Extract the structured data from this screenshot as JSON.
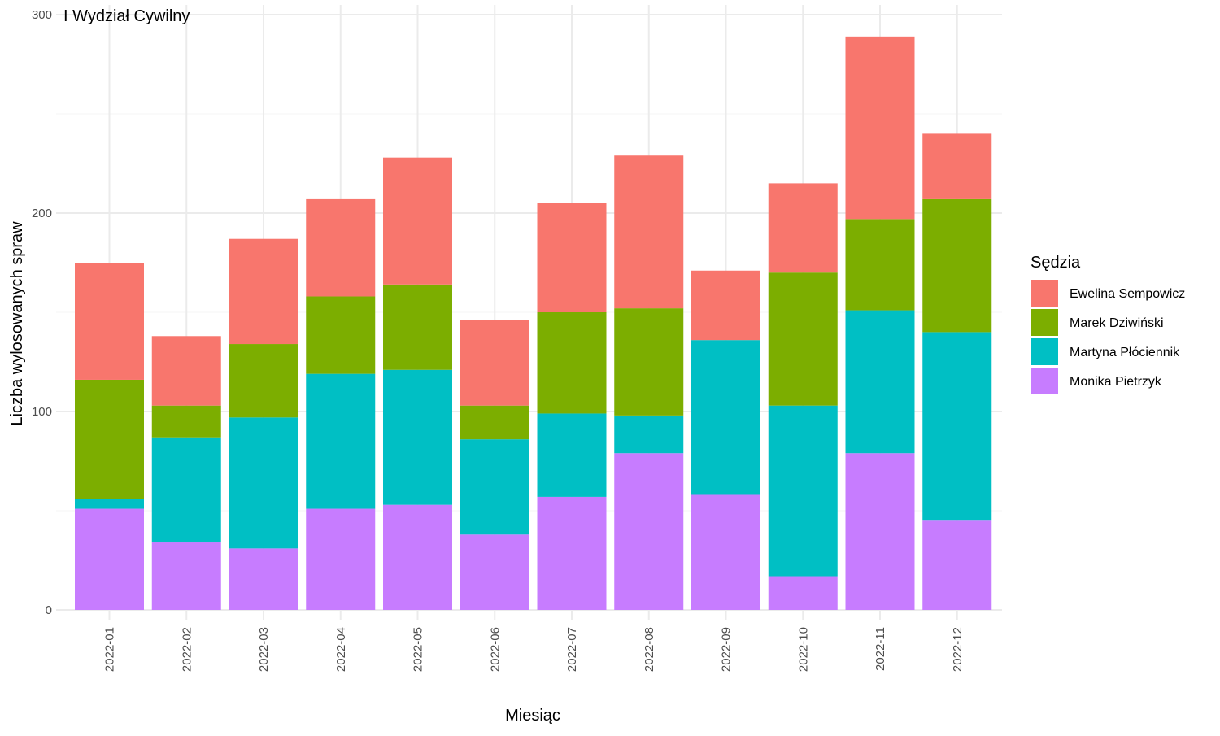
{
  "chart_data": {
    "type": "bar",
    "stacked": true,
    "title": "I Wydział Cywilny",
    "xlabel": "Miesiąc",
    "ylabel": "Liczba wylosowanych spraw",
    "ylim": [
      0,
      300
    ],
    "yticks": [
      0,
      100,
      200,
      300
    ],
    "grid": true,
    "legend": {
      "title": "Sędzia",
      "position": "right"
    },
    "categories": [
      "2022-01",
      "2022-02",
      "2022-03",
      "2022-04",
      "2022-05",
      "2022-06",
      "2022-07",
      "2022-08",
      "2022-09",
      "2022-10",
      "2022-11",
      "2022-12"
    ],
    "series": [
      {
        "name": "Monika Pietrzyk",
        "color": "#C77CFF",
        "values": [
          51,
          34,
          31,
          51,
          53,
          38,
          57,
          79,
          58,
          17,
          79,
          45
        ]
      },
      {
        "name": "Martyna Płóciennik",
        "color": "#00BFC4",
        "values": [
          5,
          53,
          66,
          68,
          68,
          48,
          42,
          19,
          78,
          86,
          72,
          95
        ]
      },
      {
        "name": "Marek Dziwiński",
        "color": "#7CAE00",
        "values": [
          60,
          16,
          37,
          39,
          43,
          17,
          51,
          54,
          0,
          67,
          46,
          67
        ]
      },
      {
        "name": "Ewelina Sempowicz",
        "color": "#F8766D",
        "values": [
          59,
          35,
          53,
          49,
          64,
          43,
          55,
          77,
          35,
          45,
          92,
          33
        ]
      }
    ],
    "legend_order": [
      "Ewelina Sempowicz",
      "Marek Dziwiński",
      "Martyna Płóciennik",
      "Monika Pietrzyk"
    ]
  }
}
